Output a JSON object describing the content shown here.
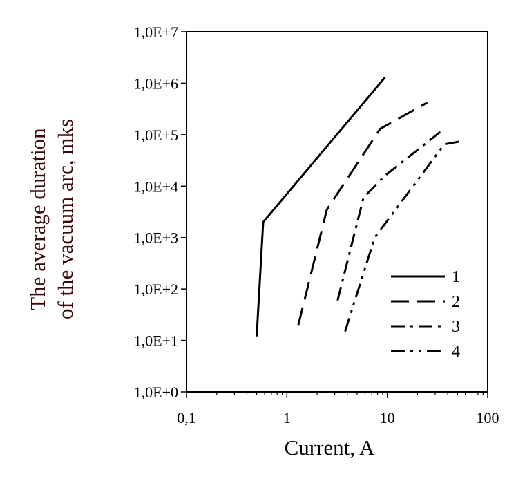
{
  "chart_data": {
    "type": "line",
    "xlabel": "Current, A",
    "ylabel_lines": [
      "The average duration",
      "of the vacuum arc, mks"
    ],
    "xscale": "log",
    "yscale": "log",
    "xlim": [
      0.1,
      100
    ],
    "ylim": [
      1,
      10000000
    ],
    "x_ticks": [
      {
        "value": 0.1,
        "label": "0,1"
      },
      {
        "value": 1,
        "label": "1"
      },
      {
        "value": 10,
        "label": "10"
      },
      {
        "value": 100,
        "label": "100"
      }
    ],
    "y_ticks": [
      {
        "value": 1,
        "label": "1,0E+0"
      },
      {
        "value": 10,
        "label": "1,0E+1"
      },
      {
        "value": 100,
        "label": "1,0E+2"
      },
      {
        "value": 1000,
        "label": "1,0E+3"
      },
      {
        "value": 10000,
        "label": "1,0E+4"
      },
      {
        "value": 100000,
        "label": "1,0E+5"
      },
      {
        "value": 1000000,
        "label": "1,0E+6"
      },
      {
        "value": 10000000,
        "label": "1,0E+7"
      }
    ],
    "grid": false,
    "legend_position": "bottom-right",
    "series": [
      {
        "name": "1",
        "dash": "solid",
        "points": [
          [
            0.5,
            12
          ],
          [
            0.58,
            2000
          ],
          [
            9.5,
            1300000
          ]
        ]
      },
      {
        "name": "2",
        "dash": "long-dash",
        "points": [
          [
            1.3,
            20
          ],
          [
            2.5,
            3500
          ],
          [
            8.5,
            130000
          ],
          [
            25,
            420000
          ]
        ]
      },
      {
        "name": "3",
        "dash": "dash-dot",
        "points": [
          [
            3.2,
            60
          ],
          [
            5.8,
            6000
          ],
          [
            9.5,
            16000
          ],
          [
            35,
            120000
          ]
        ]
      },
      {
        "name": "4",
        "dash": "dash-dot-dot",
        "points": [
          [
            3.8,
            15
          ],
          [
            7.5,
            1000
          ],
          [
            37,
            65000
          ],
          [
            55,
            75000
          ]
        ]
      }
    ]
  }
}
